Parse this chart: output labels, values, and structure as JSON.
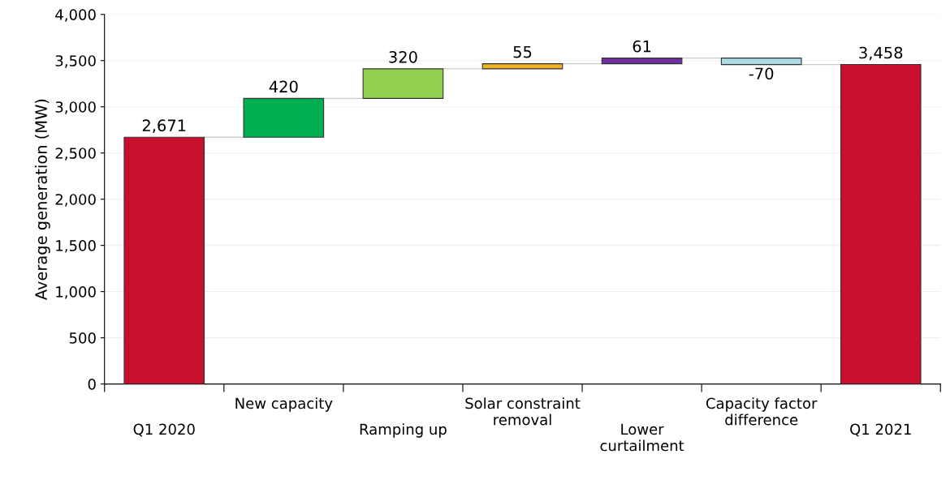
{
  "chart_data": {
    "type": "bar",
    "ylabel": "Average generation (MW)",
    "categories": [
      "Q1 2020",
      "New capacity",
      "Ramping up",
      "Solar constraint\nremoval",
      "Lower\ncurtailment",
      "Capacity factor\ndifference",
      "Q1 2021"
    ],
    "values": [
      2671,
      420,
      320,
      55,
      61,
      -70,
      3458
    ],
    "base": [
      0,
      2671,
      3091,
      3411,
      3466,
      3527,
      0
    ],
    "colors": [
      "#c8102e",
      "#00b050",
      "#92d050",
      "#f0b323",
      "#7030a0",
      "#add8e6",
      "#c8102e"
    ],
    "value_labels": [
      "2,671",
      "420",
      "320",
      "55",
      "61",
      "-70",
      "3,458"
    ],
    "ylim": [
      0,
      4000
    ],
    "yticks": [
      0,
      500,
      {
        "value": 1000,
        "label": "1,000"
      },
      {
        "value": 1500,
        "label": "1,500"
      },
      {
        "value": 2000,
        "label": "2,000"
      },
      {
        "value": 2500,
        "label": "2,500"
      },
      {
        "value": 3000,
        "label": "3,000"
      },
      {
        "value": 3500,
        "label": "3,500"
      },
      {
        "value": 4000,
        "label": "4,000"
      }
    ],
    "grid": "y"
  }
}
